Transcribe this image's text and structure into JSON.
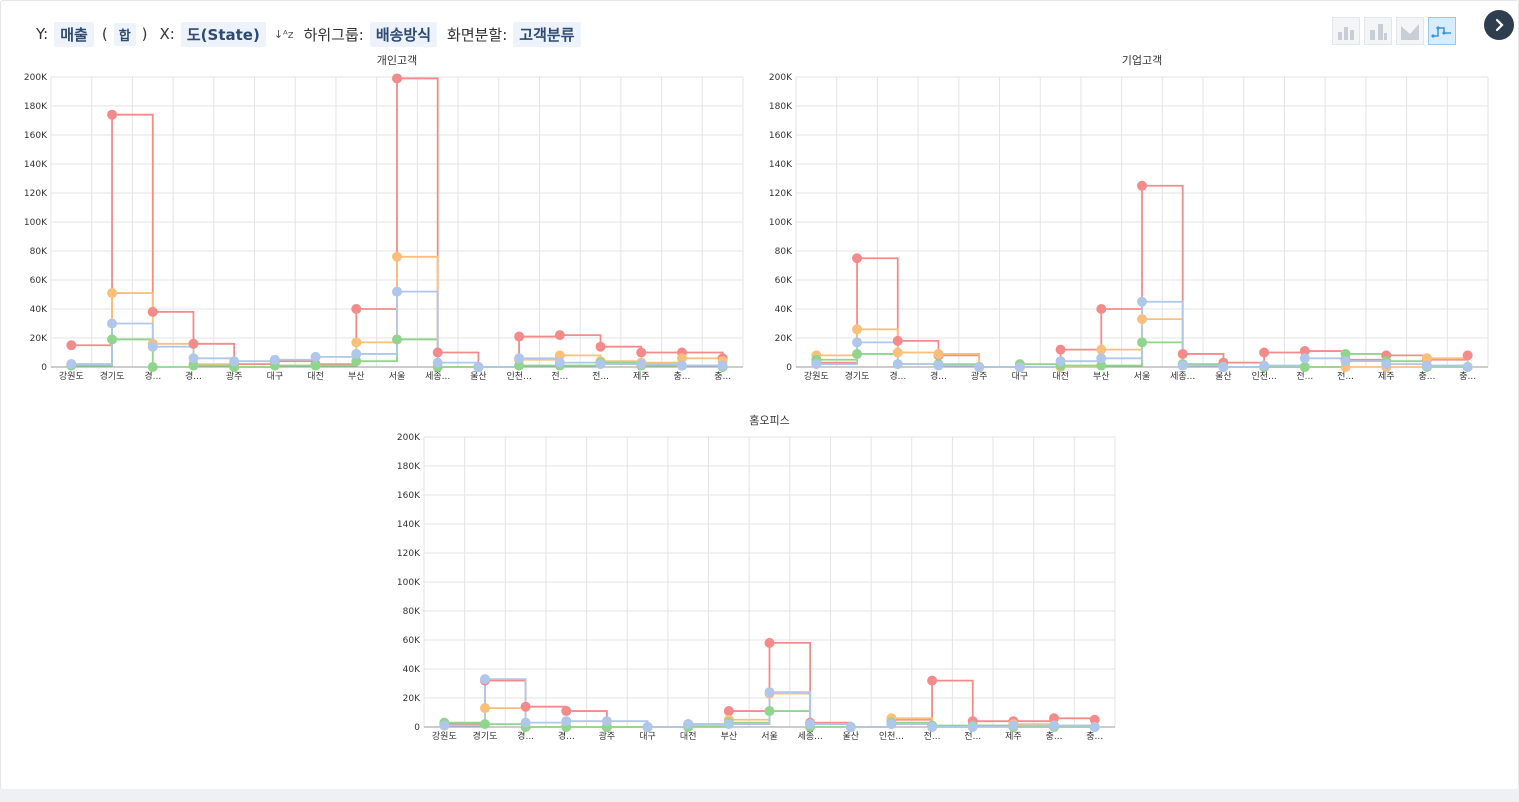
{
  "toolbar": {
    "y_label": "Y:",
    "y_value": "매출",
    "agg_open": "(",
    "agg_value": "합",
    "agg_close": ")",
    "x_label": "X:",
    "x_value": "도(State)",
    "sort_icon": "↓ᴬz",
    "subgroup_label": "하위그룹:",
    "subgroup_value": "배송방식",
    "split_label": "화면분할:",
    "split_value": "고객분류"
  },
  "chart_types": [
    "bar-chart-icon",
    "stacked-bar-icon",
    "area-chart-icon",
    "step-line-icon"
  ],
  "colors": {
    "s1": "#f48b8b",
    "s2": "#fbbf7c",
    "s3": "#8fd68c",
    "s4": "#aec7ea"
  },
  "chart_data": [
    {
      "type": "line",
      "step": true,
      "title": "개인고객",
      "categories": [
        "강원도",
        "경기도",
        "경...",
        "경...",
        "광주",
        "대구",
        "대전",
        "부산",
        "서울",
        "세종...",
        "울산",
        "인천...",
        "전...",
        "전...",
        "제주",
        "충...",
        "충..."
      ],
      "ylim": [
        0,
        200000
      ],
      "yticks": [
        "0",
        "20K",
        "40K",
        "60K",
        "80K",
        "100K",
        "120K",
        "140K",
        "160K",
        "180K",
        "200K"
      ],
      "series": [
        {
          "color": "#f48b8b",
          "values": [
            15000,
            174000,
            38000,
            16000,
            2000,
            4000,
            2000,
            40000,
            199000,
            10000,
            0,
            21000,
            22000,
            14000,
            10000,
            10000,
            6000
          ]
        },
        {
          "color": "#fbbf7c",
          "values": [
            2000,
            51000,
            16000,
            2000,
            0,
            1000,
            1000,
            17000,
            76000,
            0,
            0,
            5000,
            8000,
            4000,
            3000,
            6000,
            4000
          ]
        },
        {
          "color": "#8fd68c",
          "values": [
            1000,
            19000,
            0,
            1000,
            0,
            1000,
            1000,
            4000,
            19000,
            0,
            0,
            1000,
            1000,
            3000,
            1000,
            1000,
            0
          ]
        },
        {
          "color": "#aec7ea",
          "values": [
            2000,
            30000,
            14000,
            6000,
            4000,
            5000,
            7000,
            9000,
            52000,
            3000,
            0,
            6000,
            3000,
            2000,
            2000,
            1000,
            1000
          ]
        }
      ]
    },
    {
      "type": "line",
      "step": true,
      "title": "기업고객",
      "categories": [
        "강원도",
        "경기도",
        "경...",
        "경...",
        "광주",
        "대구",
        "대전",
        "부산",
        "서울",
        "세종...",
        "울산",
        "인천...",
        "전...",
        "전...",
        "제주",
        "충...",
        "충..."
      ],
      "ylim": [
        0,
        200000
      ],
      "yticks": [
        "0",
        "20K",
        "40K",
        "60K",
        "80K",
        "100K",
        "120K",
        "140K",
        "160K",
        "180K",
        "200K"
      ],
      "series": [
        {
          "color": "#f48b8b",
          "values": [
            3000,
            75000,
            18000,
            8000,
            0,
            0,
            12000,
            40000,
            125000,
            9000,
            3000,
            10000,
            11000,
            5000,
            8000,
            5000,
            8000
          ]
        },
        {
          "color": "#fbbf7c",
          "values": [
            8000,
            26000,
            10000,
            9000,
            0,
            0,
            0,
            12000,
            33000,
            2000,
            0,
            0,
            0,
            0,
            0,
            6000,
            0
          ]
        },
        {
          "color": "#8fd68c",
          "values": [
            5000,
            9000,
            2000,
            2000,
            0,
            2000,
            1000,
            1000,
            17000,
            2000,
            0,
            0,
            0,
            9000,
            4000,
            0,
            0
          ]
        },
        {
          "color": "#aec7ea",
          "values": [
            2000,
            17000,
            2000,
            1000,
            0,
            0,
            4000,
            6000,
            45000,
            1000,
            0,
            1000,
            6000,
            4000,
            2000,
            1000,
            0
          ]
        }
      ]
    },
    {
      "type": "line",
      "step": true,
      "title": "홈오피스",
      "categories": [
        "강원도",
        "경기도",
        "경...",
        "경...",
        "광주",
        "대구",
        "대전",
        "부산",
        "서울",
        "세종...",
        "울산",
        "인천...",
        "전...",
        "전...",
        "제주",
        "충...",
        "충..."
      ],
      "ylim": [
        0,
        200000
      ],
      "yticks": [
        "0",
        "20K",
        "40K",
        "60K",
        "80K",
        "100K",
        "120K",
        "140K",
        "160K",
        "180K",
        "200K"
      ],
      "series": [
        {
          "color": "#f48b8b",
          "values": [
            2000,
            32000,
            14000,
            11000,
            0,
            0,
            2000,
            11000,
            58000,
            3000,
            0,
            5000,
            32000,
            4000,
            4000,
            6000,
            5000
          ]
        },
        {
          "color": "#fbbf7c",
          "values": [
            1000,
            13000,
            0,
            0,
            0,
            0,
            1000,
            5000,
            23000,
            2000,
            0,
            6000,
            0,
            1000,
            2000,
            1000,
            0
          ]
        },
        {
          "color": "#8fd68c",
          "values": [
            3000,
            2000,
            0,
            0,
            0,
            0,
            0,
            3000,
            11000,
            0,
            0,
            3000,
            1000,
            1000,
            0,
            0,
            0
          ]
        },
        {
          "color": "#aec7ea",
          "values": [
            1000,
            33000,
            3000,
            4000,
            4000,
            0,
            2000,
            2000,
            24000,
            2000,
            0,
            2000,
            0,
            0,
            1000,
            1000,
            0
          ]
        }
      ]
    }
  ]
}
